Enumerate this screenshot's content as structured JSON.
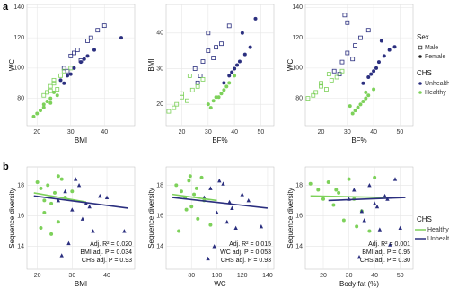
{
  "panel_labels": [
    "a",
    "b"
  ],
  "legends": [
    {
      "title": "Sex",
      "items": [
        {
          "name": "Male",
          "marker": "open-square",
          "color": "#333333"
        },
        {
          "name": "Female",
          "marker": "circle",
          "color": "#222222"
        }
      ]
    },
    {
      "title": "CHS",
      "items": [
        {
          "name": "Unhealthy",
          "marker": "circle",
          "color": "#2b2f7f"
        },
        {
          "name": "Healthy",
          "marker": "circle",
          "color": "#7dd15a"
        }
      ]
    },
    {
      "title": "CHS",
      "items": [
        {
          "name": "Healthy",
          "marker": "line",
          "color": "#7dd15a"
        },
        {
          "name": "Unhealthy",
          "marker": "line",
          "color": "#2b2f7f"
        }
      ]
    }
  ],
  "chart_data": [
    {
      "type": "scatter",
      "x_label": "BMI",
      "y_label": "WC",
      "xlim": [
        17,
        49
      ],
      "ylim": [
        62,
        142
      ],
      "xticks": [
        20,
        30,
        40
      ],
      "yticks": [
        80,
        100,
        120,
        140
      ],
      "grid": true,
      "series": [
        {
          "marker": "open-square",
          "color": "#2b2f7f",
          "x": [
            28,
            30,
            32,
            35,
            38,
            33,
            29,
            36,
            40,
            31
          ],
          "y": [
            100,
            108,
            112,
            118,
            125,
            105,
            98,
            120,
            128,
            110
          ]
        },
        {
          "marker": "open-square",
          "color": "#7dd15a",
          "x": [
            22,
            24,
            25,
            27,
            26,
            23,
            28,
            30,
            25,
            24
          ],
          "y": [
            82,
            88,
            90,
            95,
            86,
            84,
            98,
            100,
            92,
            85
          ]
        },
        {
          "marker": "circle",
          "color": "#2b2f7f",
          "x": [
            27,
            29,
            31,
            33,
            35,
            37,
            30,
            28,
            45,
            34
          ],
          "y": [
            92,
            95,
            100,
            104,
            108,
            112,
            96,
            90,
            120,
            106
          ]
        },
        {
          "marker": "circle",
          "color": "#7dd15a",
          "x": [
            20,
            21,
            22,
            23,
            24,
            25,
            22,
            26,
            19,
            24
          ],
          "y": [
            70,
            72,
            76,
            78,
            80,
            84,
            74,
            82,
            68,
            77
          ]
        }
      ]
    },
    {
      "type": "scatter",
      "x_label": "BF%",
      "y_label": "BMI",
      "xlim": [
        14,
        55
      ],
      "ylim": [
        14,
        48
      ],
      "xticks": [
        20,
        30,
        40,
        50
      ],
      "yticks": [
        20,
        30,
        40
      ],
      "grid": true,
      "series": [
        {
          "marker": "open-square",
          "color": "#2b2f7f",
          "x": [
            25,
            28,
            30,
            32,
            27,
            35,
            30,
            33,
            26,
            38
          ],
          "y": [
            30,
            32,
            35,
            33,
            28,
            37,
            40,
            36,
            26,
            42
          ]
        },
        {
          "marker": "open-square",
          "color": "#7dd15a",
          "x": [
            15,
            18,
            20,
            22,
            24,
            17,
            26,
            28,
            20,
            23
          ],
          "y": [
            18,
            20,
            22,
            21,
            24,
            19,
            25,
            27,
            23,
            28
          ]
        },
        {
          "marker": "circle",
          "color": "#2b2f7f",
          "x": [
            36,
            38,
            40,
            42,
            44,
            46,
            39,
            41,
            43,
            48
          ],
          "y": [
            26,
            28,
            30,
            32,
            34,
            36,
            29,
            31,
            40,
            44
          ]
        },
        {
          "marker": "circle",
          "color": "#7dd15a",
          "x": [
            30,
            32,
            34,
            36,
            35,
            38,
            33,
            37,
            31,
            40
          ],
          "y": [
            20,
            21,
            22,
            24,
            23,
            26,
            22,
            25,
            19,
            28
          ]
        }
      ]
    },
    {
      "type": "scatter",
      "x_label": "BF%",
      "y_label": "WC",
      "xlim": [
        14,
        55
      ],
      "ylim": [
        62,
        142
      ],
      "xticks": [
        20,
        30,
        40,
        50
      ],
      "yticks": [
        80,
        100,
        120,
        140
      ],
      "grid": true,
      "series": [
        {
          "marker": "open-square",
          "color": "#2b2f7f",
          "x": [
            25,
            28,
            30,
            32,
            27,
            35,
            30,
            33,
            29,
            38
          ],
          "y": [
            98,
            104,
            110,
            106,
            96,
            120,
            130,
            115,
            135,
            125
          ]
        },
        {
          "marker": "open-square",
          "color": "#7dd15a",
          "x": [
            15,
            18,
            20,
            22,
            24,
            17,
            26,
            28,
            20,
            23
          ],
          "y": [
            80,
            84,
            88,
            86,
            92,
            82,
            94,
            98,
            90,
            96
          ]
        },
        {
          "marker": "circle",
          "color": "#2b2f7f",
          "x": [
            36,
            38,
            40,
            42,
            44,
            46,
            39,
            41,
            43,
            48
          ],
          "y": [
            90,
            94,
            98,
            104,
            108,
            112,
            96,
            100,
            118,
            114
          ]
        },
        {
          "marker": "circle",
          "color": "#7dd15a",
          "x": [
            32,
            34,
            35,
            36,
            37,
            38,
            33,
            37,
            31,
            40
          ],
          "y": [
            70,
            74,
            76,
            78,
            80,
            82,
            72,
            84,
            75,
            86
          ]
        }
      ]
    },
    {
      "type": "scatter",
      "x_label": "BMI",
      "y_label": "Sequence diversity",
      "xlim": [
        17,
        48
      ],
      "ylim": [
        12.5,
        19.2
      ],
      "xticks": [
        20,
        30,
        40
      ],
      "yticks": [
        14,
        16,
        18
      ],
      "grid": true,
      "series": [
        {
          "marker": "circle",
          "color": "#7dd15a",
          "x": [
            20,
            21,
            22,
            23,
            24,
            25,
            26,
            27,
            28,
            22,
            24,
            30,
            21,
            26
          ],
          "y": [
            18.2,
            17.8,
            17.0,
            18.0,
            16.8,
            17.5,
            15.6,
            18.4,
            17.2,
            16.2,
            14.8,
            17.6,
            15.2,
            18.6
          ]
        },
        {
          "marker": "triangle",
          "color": "#2b2f7f",
          "x": [
            26,
            28,
            30,
            32,
            34,
            36,
            38,
            29,
            31,
            33,
            35,
            40,
            45,
            27
          ],
          "y": [
            17.0,
            17.6,
            16.4,
            18.0,
            16.8,
            15.0,
            17.3,
            14.2,
            18.4,
            15.8,
            16.6,
            17.2,
            15.0,
            13.4
          ]
        }
      ],
      "fits": [
        {
          "color": "#7dd15a",
          "x": [
            19,
            34
          ],
          "y": [
            17.5,
            16.9
          ]
        },
        {
          "color": "#2b2f7f",
          "x": [
            19,
            46
          ],
          "y": [
            17.3,
            16.5
          ]
        }
      ],
      "annotations": [
        "Adj. R² = 0.020",
        "BMI adj. P = 0.034",
        "CHS adj. P = 0.93"
      ]
    },
    {
      "type": "scatter",
      "x_label": "WC",
      "y_label": "Sequence diversity",
      "xlim": [
        60,
        145
      ],
      "ylim": [
        12.5,
        19.2
      ],
      "xticks": [
        80,
        100,
        120,
        140
      ],
      "yticks": [
        14,
        16,
        18
      ],
      "grid": true,
      "series": [
        {
          "marker": "circle",
          "color": "#7dd15a",
          "x": [
            68,
            72,
            75,
            78,
            80,
            82,
            85,
            88,
            90,
            76,
            70,
            84,
            95,
            79
          ],
          "y": [
            18.0,
            17.6,
            17.2,
            18.3,
            16.6,
            17.4,
            15.8,
            18.5,
            17.0,
            16.4,
            15.0,
            17.8,
            15.4,
            18.6
          ]
        },
        {
          "marker": "triangle",
          "color": "#2b2f7f",
          "x": [
            90,
            95,
            100,
            105,
            110,
            115,
            120,
            98,
            102,
            108,
            112,
            125,
            135,
            93
          ],
          "y": [
            17.2,
            17.8,
            16.2,
            18.1,
            16.9,
            15.2,
            17.4,
            14.0,
            18.3,
            15.6,
            16.5,
            17.0,
            15.3,
            13.2
          ]
        }
      ],
      "fits": [
        {
          "color": "#7dd15a",
          "x": [
            65,
            100
          ],
          "y": [
            17.4,
            17.0
          ]
        },
        {
          "color": "#2b2f7f",
          "x": [
            65,
            140
          ],
          "y": [
            17.2,
            16.5
          ]
        }
      ],
      "annotations": [
        "Adj. R² = 0.015",
        "WC adj. P = 0.053",
        "CHS adj. P = 0.93"
      ]
    },
    {
      "type": "scatter",
      "x_label": "Body fat (%)",
      "y_label": "Sequence diversity",
      "xlim": [
        13,
        55
      ],
      "ylim": [
        12.5,
        19.2
      ],
      "xticks": [
        20,
        30,
        40,
        50
      ],
      "yticks": [
        14,
        16,
        18
      ],
      "grid": true,
      "series": [
        {
          "marker": "circle",
          "color": "#7dd15a",
          "x": [
            15,
            18,
            20,
            22,
            24,
            26,
            28,
            30,
            32,
            35,
            38,
            25,
            33,
            40
          ],
          "y": [
            18.1,
            17.7,
            17.1,
            18.2,
            16.7,
            17.5,
            15.7,
            18.4,
            17.1,
            16.3,
            15.0,
            17.7,
            15.3,
            18.5
          ]
        },
        {
          "marker": "triangle",
          "color": "#2b2f7f",
          "x": [
            30,
            32,
            35,
            38,
            40,
            42,
            44,
            46,
            48,
            36,
            41,
            45,
            50,
            34
          ],
          "y": [
            17.1,
            17.7,
            16.3,
            18.0,
            16.8,
            15.1,
            17.3,
            14.1,
            18.4,
            15.7,
            16.6,
            17.1,
            15.2,
            13.3
          ]
        }
      ],
      "fits": [
        {
          "color": "#7dd15a",
          "x": [
            15,
            45
          ],
          "y": [
            17.3,
            17.2
          ]
        },
        {
          "color": "#2b2f7f",
          "x": [
            22,
            52
          ],
          "y": [
            17.0,
            17.2
          ]
        }
      ],
      "annotations": [
        "Adj. R² = 0.001",
        "BMI adj. P = 0.95",
        "CHS adj. P = 0.30"
      ]
    }
  ]
}
